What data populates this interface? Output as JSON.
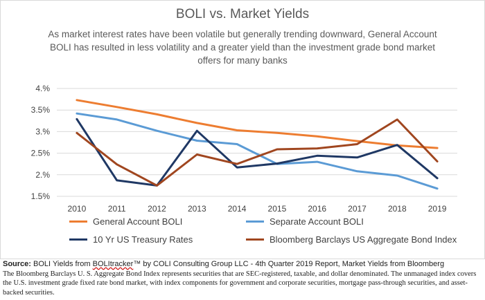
{
  "chart_data": {
    "type": "line",
    "title": "BOLI vs. Market Yields",
    "subtitle": "As market interest rates have been volatile but generally trending downward, General Account BOLI has resulted in less volatility and a greater yield than the investment grade bond market offers for many banks",
    "x": [
      "2010",
      "2011",
      "2012",
      "2013",
      "2014",
      "2015",
      "2016",
      "2017",
      "2018",
      "2019"
    ],
    "ylim": [
      1.5,
      4.0
    ],
    "yticks": [
      "1.5%",
      "2.%",
      "2.5%",
      "3.%",
      "3.5%",
      "4.%"
    ],
    "grid": true,
    "legend_position": "bottom",
    "series": [
      {
        "name": "General Account BOLI",
        "color": "#ed7d31",
        "values": [
          3.73,
          3.57,
          3.4,
          3.2,
          3.03,
          2.97,
          2.89,
          2.78,
          2.68,
          2.62
        ]
      },
      {
        "name": "Separate Account BOLI",
        "color": "#5b9bd5",
        "values": [
          3.42,
          3.28,
          3.02,
          2.79,
          2.71,
          2.25,
          2.3,
          2.08,
          1.98,
          1.68
        ]
      },
      {
        "name": "10 Yr US Treasury Rates",
        "color": "#1f3864",
        "values": [
          3.29,
          1.87,
          1.75,
          3.02,
          2.17,
          2.26,
          2.44,
          2.4,
          2.69,
          1.92
        ]
      },
      {
        "name": "Bloomberg Barclays US Aggregate Bond Index",
        "color": "#a0461f",
        "values": [
          2.97,
          2.24,
          1.75,
          2.47,
          2.25,
          2.59,
          2.61,
          2.71,
          3.28,
          2.31
        ]
      }
    ]
  },
  "source": {
    "label": "Source:",
    "text_a": " BOLI Yields from ",
    "brand": "BOLItracker",
    "text_b": "™ by COLI Consulting Group LLC - 4th Quarter 2019 Report, Market Yields from Bloomberg",
    "note": "The Bloomberg Barclays U. S. Aggregate Bond Index represents securities that are SEC-registered, taxable, and dollar denominated. The unmanaged index covers the U.S. investment grade fixed rate bond market, with index components for government and corporate securities, mortgage pass-through securities, and asset-backed securities."
  }
}
